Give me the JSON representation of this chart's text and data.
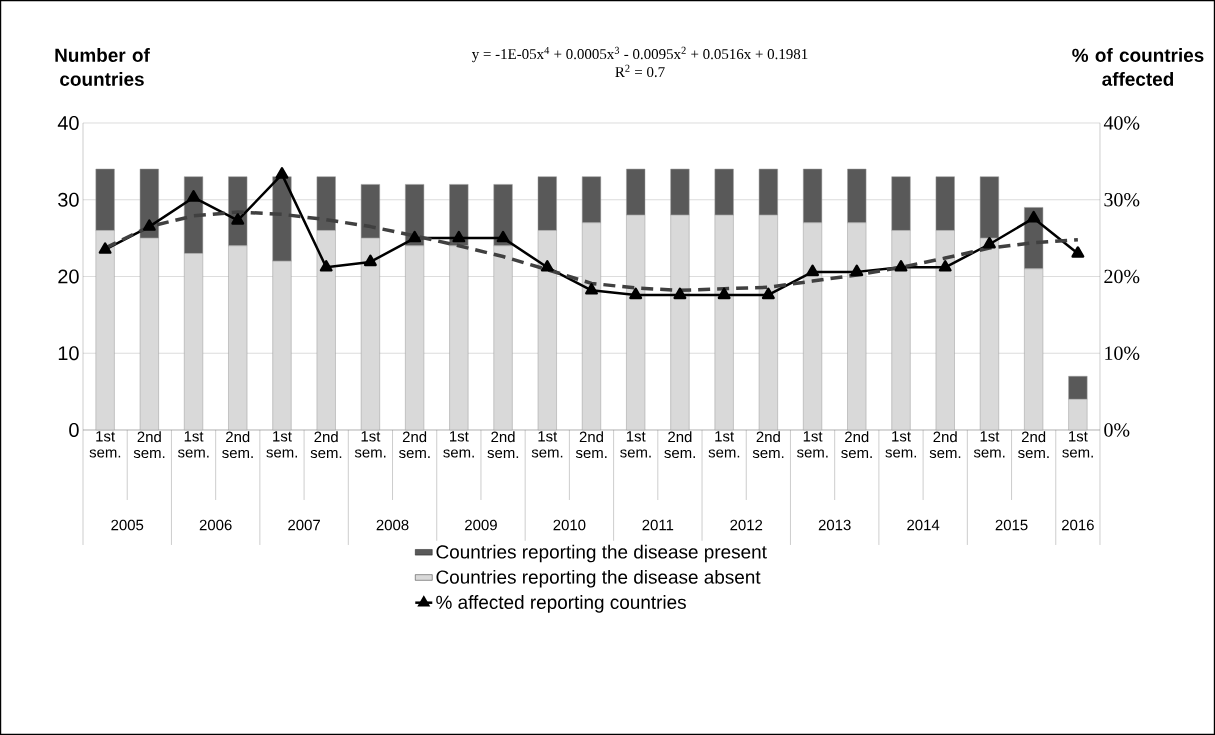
{
  "chart_data": {
    "type": "bar",
    "stacked": true,
    "ylabel": "Number of countries",
    "y2label": "% of countries affected",
    "categories": [
      "1st sem.",
      "2nd sem.",
      "1st sem.",
      "2nd sem.",
      "1st sem.",
      "2nd sem.",
      "1st sem.",
      "2nd sem.",
      "1st sem.",
      "2nd sem.",
      "1st sem.",
      "2nd sem.",
      "1st sem.",
      "2nd sem.",
      "1st sem.",
      "2nd sem.",
      "1st sem.",
      "2nd sem.",
      "1st sem.",
      "2nd sem.",
      "1st sem.",
      "2nd sem.",
      "1st sem."
    ],
    "ylim": [
      0,
      40
    ],
    "yticks": [
      0,
      10,
      20,
      30,
      40
    ],
    "y2lim": [
      0,
      40
    ],
    "y2ticks": [
      {
        "value": 0,
        "label": "0%"
      },
      {
        "value": 10,
        "label": "10%"
      },
      {
        "value": 20,
        "label": "20%"
      },
      {
        "value": 30,
        "label": "30%"
      },
      {
        "value": 40,
        "label": "40%"
      }
    ],
    "grid": "y",
    "legend": "bottom",
    "annotations": [
      "y = -1E-05x$^{4}$ + 0.0005x$^{3}$ - 0.0095x$^{2}$ + 0.0516x + 0.1981",
      "R$^{2}$ = 0.7",
      "2005",
      "2006",
      "2007",
      "2008",
      "2009",
      "2010",
      "2011",
      "2012",
      "2013",
      "2014",
      "2015",
      "2016"
    ],
    "series": [
      {
        "name": "Countries reporting the disease absent",
        "color": "#d9d9d9",
        "values": [
          26,
          25,
          23,
          24,
          22,
          26,
          25,
          24,
          24,
          24,
          26,
          27,
          28,
          28,
          28,
          28,
          27,
          27,
          26,
          26,
          25,
          21,
          4
        ]
      },
      {
        "name": "Countries reporting the disease present",
        "color": "#595959",
        "values": [
          8,
          9,
          10,
          9,
          11,
          7,
          7,
          8,
          8,
          8,
          7,
          6,
          6,
          6,
          6,
          6,
          7,
          7,
          7,
          7,
          8,
          8,
          3
        ]
      },
      {
        "name": "% affected reporting countries",
        "type": "line",
        "axis": "y2",
        "color": "#000000",
        "marker": "triangle",
        "line_style": "solid",
        "values": [
          23.5,
          26.5,
          30.3,
          27.3,
          33.3,
          21.2,
          21.9,
          25,
          25,
          25,
          21.2,
          18.2,
          17.6,
          17.6,
          17.6,
          17.6,
          20.6,
          20.6,
          21.2,
          21.2,
          24.2,
          27.6,
          23
        ]
      },
      {
        "type": "line",
        "axis": "y2",
        "color": "#404040",
        "marker": "none",
        "line_style": "dashed",
        "values": [
          23.7,
          26.5,
          27.9,
          28.4,
          28.1,
          27.4,
          26.5,
          25.3,
          24,
          22.6,
          20.9,
          19.1,
          18.5,
          18.2,
          18.4,
          18.6,
          19.4,
          20.2,
          21.2,
          22.4,
          23.7,
          24.4,
          24.8
        ]
      }
    ]
  }
}
